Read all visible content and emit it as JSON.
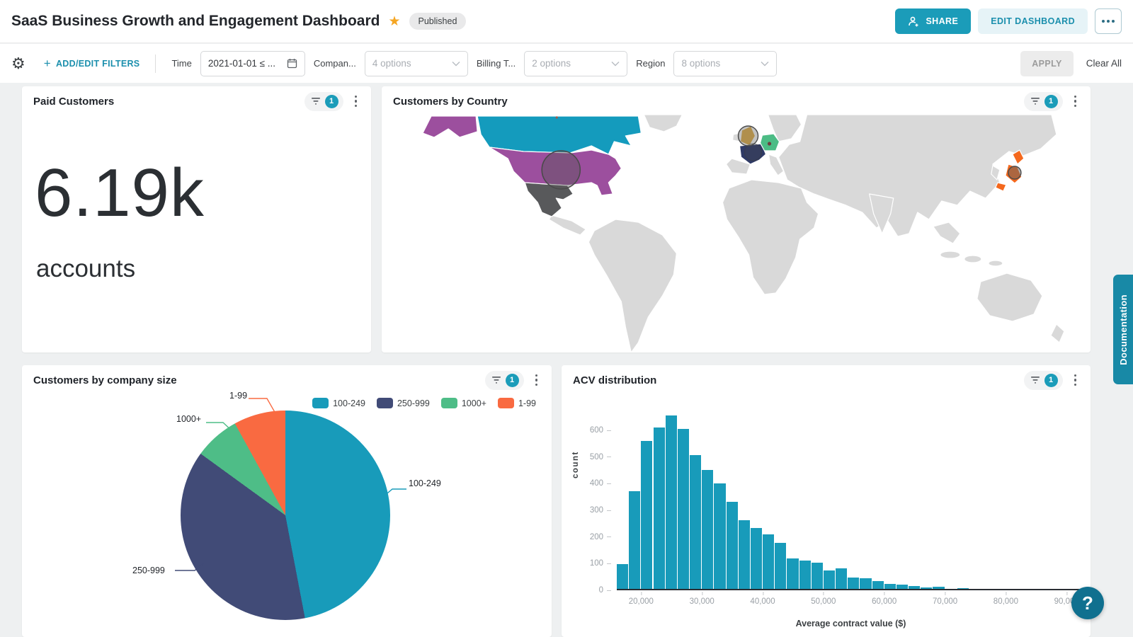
{
  "header": {
    "title": "SaaS Business Growth and Engagement Dashboard",
    "published_label": "Published",
    "share_label": "SHARE",
    "edit_label": "EDIT DASHBOARD"
  },
  "filters": {
    "add_edit_label": "ADD/EDIT FILTERS",
    "time": {
      "label": "Time",
      "value": "2021-01-01 ≤ ..."
    },
    "company": {
      "label": "Compan...",
      "value": "4 options"
    },
    "billing": {
      "label": "Billing T...",
      "value": "2 options"
    },
    "region": {
      "label": "Region",
      "value": "8 options"
    },
    "apply_label": "APPLY",
    "clear_label": "Clear All"
  },
  "cards": {
    "paid_customers": {
      "title": "Paid Customers",
      "filter_count": "1",
      "value": "6.19k",
      "unit": "accounts"
    },
    "customers_by_country": {
      "title": "Customers by Country",
      "filter_count": "1"
    },
    "company_size": {
      "title": "Customers by company size",
      "filter_count": "1"
    },
    "acv": {
      "title": "ACV distribution",
      "filter_count": "1"
    }
  },
  "docs_tab_label": "Documentation",
  "help_label": "?",
  "colors": {
    "accent_teal": "#1B9CB9",
    "link_teal": "#1B8FAD",
    "docs_tab": "#1889A6",
    "help_button": "#10708F",
    "star_gold": "#F5A623"
  },
  "chart_data": [
    {
      "type": "pie",
      "title": "Customers by company size",
      "labels": [
        "100-249",
        "250-999",
        "1000+",
        "1-99"
      ],
      "values": [
        47,
        38,
        7,
        8
      ],
      "units": "percent (estimated from slice angles)",
      "colors": [
        "#189BBA",
        "#414B77",
        "#4EBD87",
        "#F96A41"
      ],
      "legend_position": "top-right",
      "start_angle": "12 o'clock, clockwise"
    },
    {
      "type": "bar",
      "subtype": "histogram",
      "title": "ACV distribution",
      "xlabel": "Average contract value ($)",
      "ylabel": "count",
      "bar_color": "#189BBA",
      "bin_start": 16000,
      "bin_width": 2000,
      "values": [
        95,
        370,
        560,
        610,
        655,
        605,
        505,
        450,
        400,
        330,
        260,
        230,
        205,
        175,
        115,
        107,
        100,
        70,
        78,
        42,
        40,
        30,
        20,
        17,
        12,
        5,
        9,
        0,
        4
      ],
      "xlim": [
        16000,
        93000
      ],
      "ylim": [
        0,
        680
      ],
      "y_ticks": [
        0,
        100,
        200,
        300,
        400,
        500,
        600
      ],
      "x_ticks": [
        {
          "value": 20000,
          "label": "20,000"
        },
        {
          "value": 30000,
          "label": "30,000"
        },
        {
          "value": 40000,
          "label": "40,000"
        },
        {
          "value": 50000,
          "label": "50,000"
        },
        {
          "value": 60000,
          "label": "60,000"
        },
        {
          "value": 70000,
          "label": "70,000"
        },
        {
          "value": 80000,
          "label": "80,000"
        },
        {
          "value": 90000,
          "label": "90,000"
        }
      ],
      "grid": false
    },
    {
      "type": "map",
      "title": "Customers by Country",
      "base_color": "#D9D9D9",
      "border_color": "#FFFFFF",
      "highlighted": [
        {
          "country": "United States",
          "color": "#9C4F9E",
          "bubble": "large"
        },
        {
          "country": "Canada",
          "color": "#149BBD",
          "bubble": "none"
        },
        {
          "country": "Mexico",
          "color": "#58595B",
          "bubble": "none"
        },
        {
          "country": "United Kingdom",
          "color": "#DFA32B",
          "bubble": "medium"
        },
        {
          "country": "France",
          "color": "#2F3A66",
          "bubble": "medium-faint"
        },
        {
          "country": "Germany",
          "color": "#4CBC85",
          "bubble": "dot"
        },
        {
          "country": "Japan",
          "color": "#F4681D",
          "bubble": "small"
        }
      ]
    }
  ]
}
